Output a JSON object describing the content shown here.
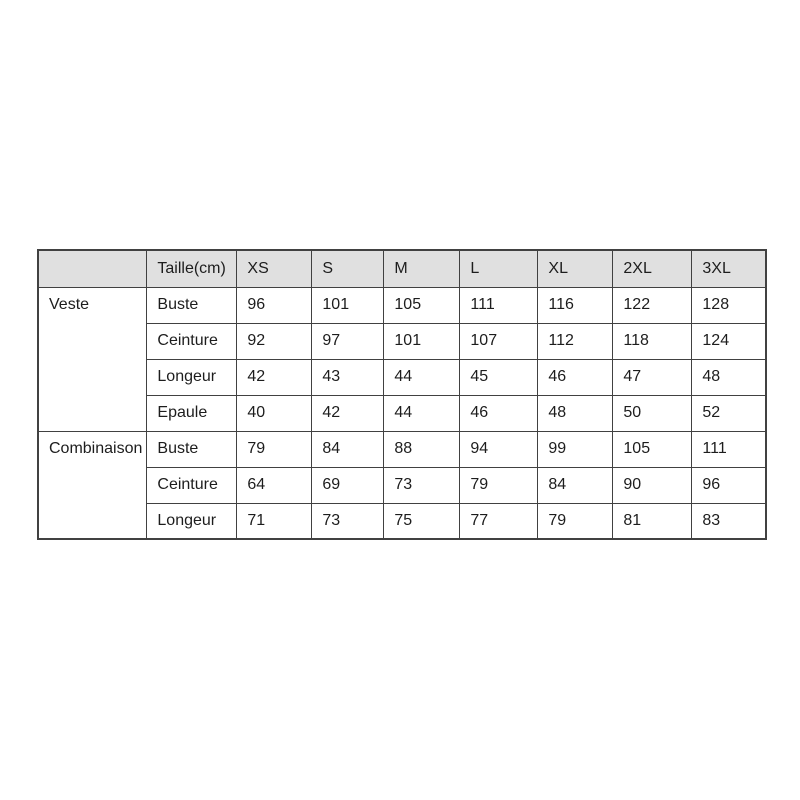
{
  "table": {
    "header": [
      "",
      "Taille(cm)",
      "XS",
      "S",
      "M",
      "L",
      "XL",
      "2XL",
      "3XL"
    ],
    "groups": [
      {
        "name": "Veste",
        "rows": [
          {
            "label": "Buste",
            "values": [
              "96",
              "101",
              "105",
              "111",
              "116",
              "122",
              "128"
            ]
          },
          {
            "label": "Ceinture",
            "values": [
              "92",
              "97",
              "101",
              "107",
              "112",
              "118",
              "124"
            ]
          },
          {
            "label": "Longeur",
            "values": [
              "42",
              "43",
              "44",
              "45",
              "46",
              "47",
              "48"
            ]
          },
          {
            "label": "Epaule",
            "values": [
              "40",
              "42",
              "44",
              "46",
              "48",
              "50",
              "52"
            ]
          }
        ]
      },
      {
        "name": "Combinaison",
        "rows": [
          {
            "label": "Buste",
            "values": [
              "79",
              "84",
              "88",
              "94",
              "99",
              "105",
              "111"
            ]
          },
          {
            "label": "Ceinture",
            "values": [
              "64",
              "69",
              "73",
              "79",
              "84",
              "90",
              "96"
            ]
          },
          {
            "label": "Longeur",
            "values": [
              "71",
              "73",
              "75",
              "77",
              "79",
              "81",
              "83"
            ]
          }
        ]
      }
    ],
    "colors": {
      "page_bg": "#ffffff",
      "header_bg": "#e0e0e0",
      "border": "#414141",
      "text": "#1d1d1d"
    }
  }
}
